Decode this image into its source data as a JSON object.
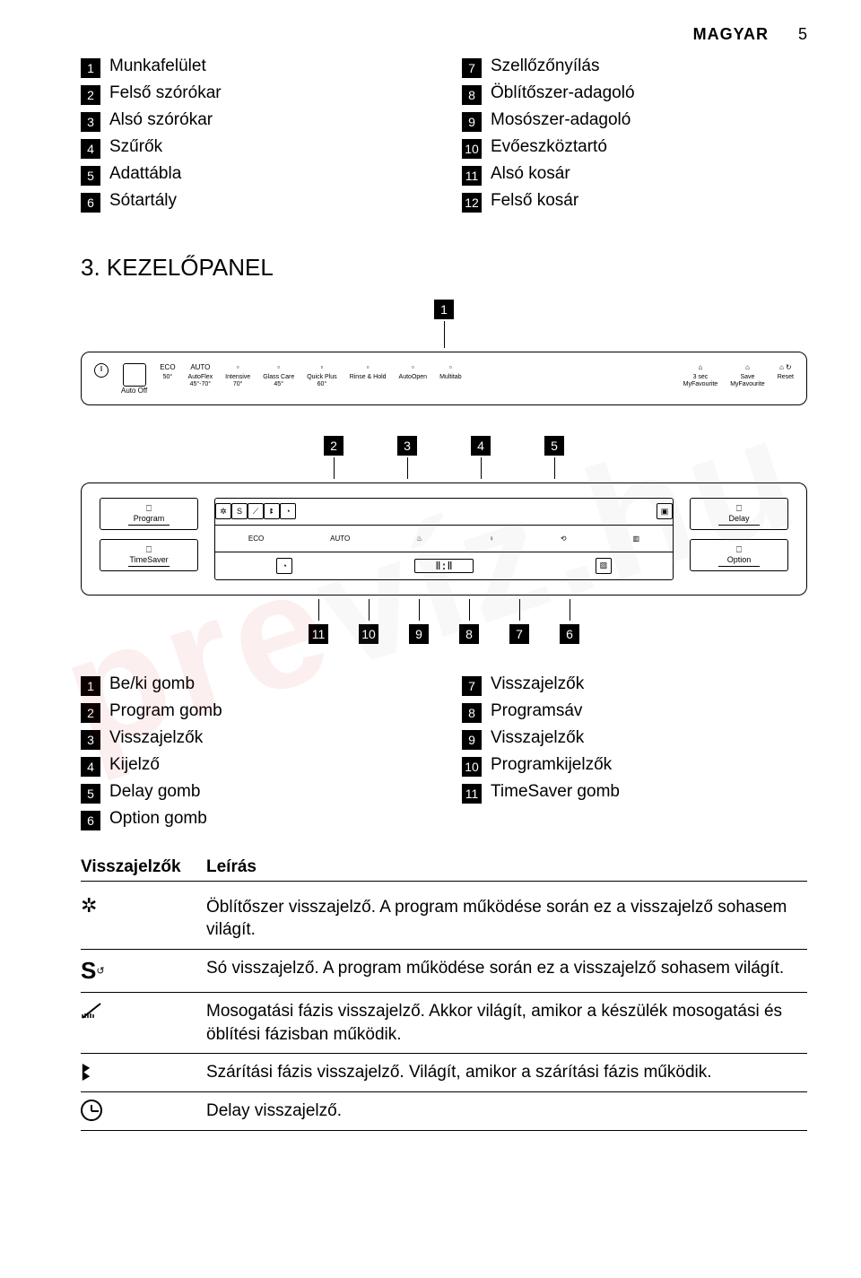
{
  "header": {
    "lang": "MAGYAR",
    "page": "5"
  },
  "parts_left": [
    {
      "n": "1",
      "label": "Munkafelület"
    },
    {
      "n": "2",
      "label": "Felső szórókar"
    },
    {
      "n": "3",
      "label": "Alsó szórókar"
    },
    {
      "n": "4",
      "label": "Szűrők"
    },
    {
      "n": "5",
      "label": "Adattábla"
    },
    {
      "n": "6",
      "label": "Sótartály"
    }
  ],
  "parts_right": [
    {
      "n": "7",
      "label": "Szellőzőnyílás"
    },
    {
      "n": "8",
      "label": "Öblítőszer-adagoló"
    },
    {
      "n": "9",
      "label": "Mosószer-adagoló"
    },
    {
      "n": "10",
      "label": "Evőeszköztartó"
    },
    {
      "n": "11",
      "label": "Alsó kosár"
    },
    {
      "n": "12",
      "label": "Felső kosár"
    }
  ],
  "section_title": "3. KEZELŐPANEL",
  "top_callout": "1",
  "panel_top": {
    "auto_off": "Auto Off",
    "cols": [
      {
        "t1": "ECO",
        "t2": "",
        "t3": "50°"
      },
      {
        "t1": "AUTO",
        "t2": "AutoFlex",
        "t3": "45°-70°"
      },
      {
        "t1": "",
        "t2": "Intensive",
        "t3": "70°"
      },
      {
        "t1": "",
        "t2": "Glass Care",
        "t3": "45°"
      },
      {
        "t1": "",
        "t2": "Quick Plus",
        "t3": "60°"
      },
      {
        "t1": "",
        "t2": "Rinse & Hold",
        "t3": ""
      },
      {
        "t1": "",
        "t2": "AutoOpen",
        "t3": ""
      },
      {
        "t1": "",
        "t2": "Multitab",
        "t3": ""
      }
    ],
    "fav_line1": "3 sec",
    "fav_line2": "MyFavourite",
    "fav_save": "Save\nMyFavourite",
    "fav_reset": "Reset"
  },
  "mid_callouts_top": [
    "2",
    "3",
    "4",
    "5"
  ],
  "panel_bottom": {
    "left": [
      {
        "label": "Program"
      },
      {
        "label": "TimeSaver"
      }
    ],
    "right": [
      {
        "label": "Delay"
      },
      {
        "label": "Option"
      }
    ],
    "row1_icons": [
      "✲",
      "S",
      "⟋",
      "ꔪ",
      "◔"
    ],
    "row2_icons": [
      "ECO",
      "AUTO",
      "♨",
      "♀",
      "⟲",
      "▥"
    ],
    "row3_left": "◔",
    "row3_seg": "Ⅱ:Ⅱ"
  },
  "mid_callouts_bottom": [
    "11",
    "10",
    "9",
    "8",
    "7",
    "6"
  ],
  "legend_left": [
    {
      "n": "1",
      "label": "Be/ki gomb"
    },
    {
      "n": "2",
      "label": "Program gomb"
    },
    {
      "n": "3",
      "label": "Visszajelzők"
    },
    {
      "n": "4",
      "label": "Kijelző"
    },
    {
      "n": "5",
      "label": "Delay gomb"
    },
    {
      "n": "6",
      "label": "Option gomb"
    }
  ],
  "legend_right": [
    {
      "n": "7",
      "label": "Visszajelzők"
    },
    {
      "n": "8",
      "label": "Programsáv"
    },
    {
      "n": "9",
      "label": "Visszajelzők"
    },
    {
      "n": "10",
      "label": "Programkijelzők"
    },
    {
      "n": "11",
      "label": "TimeSaver gomb"
    }
  ],
  "desc_head": {
    "c1": "Visszajelzők",
    "c2": "Leírás"
  },
  "desc_rows": [
    {
      "icon": "rinse",
      "text": "Öblítőszer visszajelző. A program működése során ez a visszajelző soha­sem világít."
    },
    {
      "icon": "salt",
      "text": "Só visszajelző. A program működése során ez a visszajelző sohasem világ­ít."
    },
    {
      "icon": "brush",
      "text": "Mosogatási fázis visszajelző. Akkor világít, amikor a készülék mosogatási és öblítési fázisban működik."
    },
    {
      "icon": "wave",
      "text": "Szárítási fázis visszajelző. Világít, amikor a szárítási fázis működik."
    },
    {
      "icon": "clock",
      "text": "Delay visszajelző."
    }
  ]
}
